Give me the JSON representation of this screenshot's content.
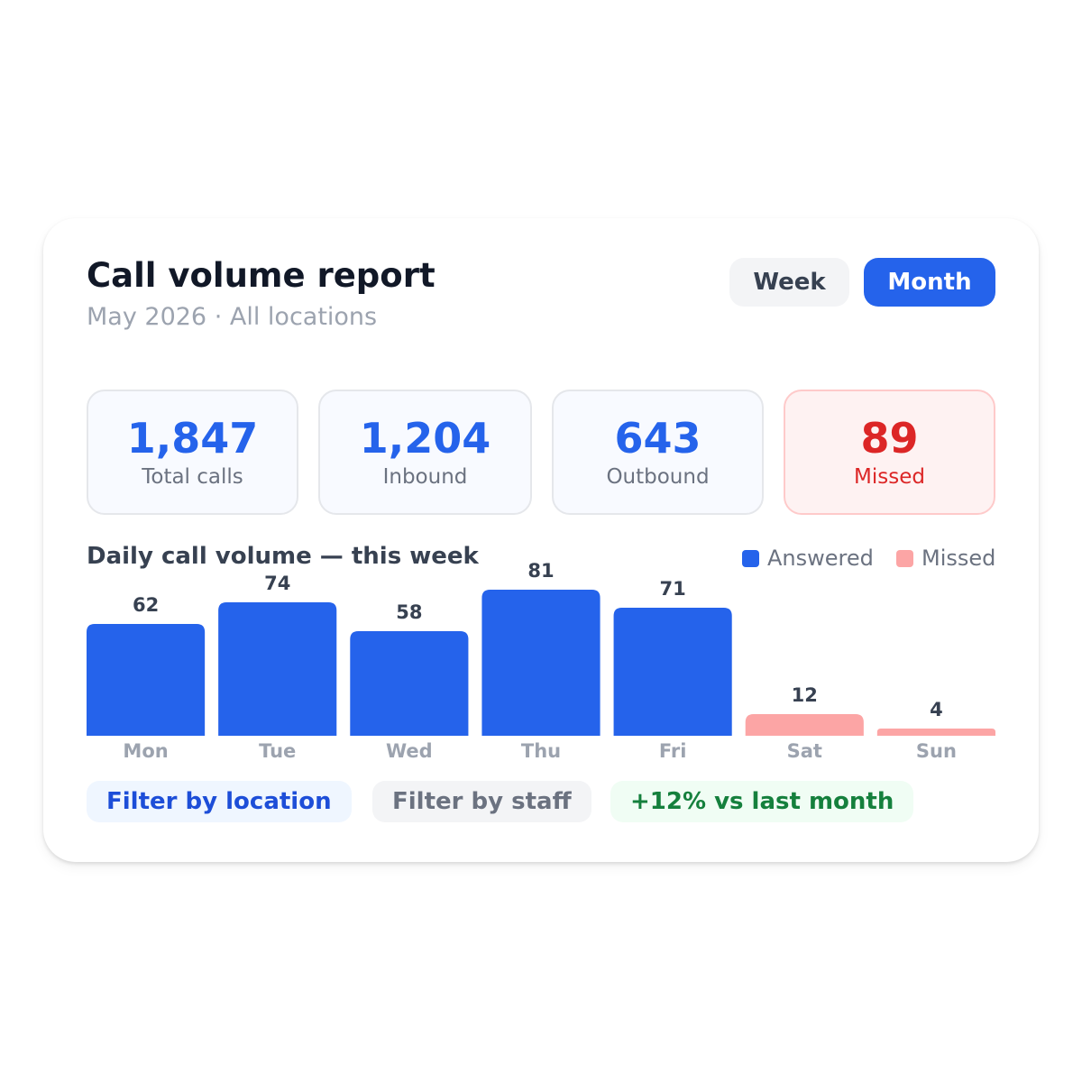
{
  "header": {
    "title": "Call volume report",
    "subtitle": "May 2026 · All locations"
  },
  "period_toggle": {
    "week_label": "Week",
    "month_label": "Month",
    "selected": "Month"
  },
  "stats": [
    {
      "value": "1,847",
      "label": "Total calls"
    },
    {
      "value": "1,204",
      "label": "Inbound"
    },
    {
      "value": "643",
      "label": "Outbound"
    },
    {
      "value": "89",
      "label": "Missed"
    }
  ],
  "chart_title": "Daily call volume — this week",
  "legend": {
    "answered_label": "Answered",
    "missed_label": "Missed"
  },
  "chart_data": {
    "type": "bar",
    "categories": [
      "Mon",
      "Tue",
      "Wed",
      "Thu",
      "Fri",
      "Sat",
      "Sun"
    ],
    "values": [
      62,
      74,
      58,
      81,
      71,
      12,
      4
    ],
    "series_by_bar": [
      "Answered",
      "Answered",
      "Answered",
      "Answered",
      "Answered",
      "Missed",
      "Missed"
    ],
    "series": [
      {
        "name": "Answered",
        "color": "#2563eb"
      },
      {
        "name": "Missed",
        "color": "#fca5a5"
      }
    ],
    "title": "Daily call volume — this week",
    "legend": "top-right",
    "grid": false
  },
  "actions": {
    "filter_location_label": "Filter by location",
    "filter_staff_label": "Filter by staff",
    "trend_label": "+12% vs last month"
  },
  "colors": {
    "accent": "#2563eb",
    "missed": "#dc2626",
    "missed_bar": "#fca5a5",
    "trend": "#15803d"
  }
}
